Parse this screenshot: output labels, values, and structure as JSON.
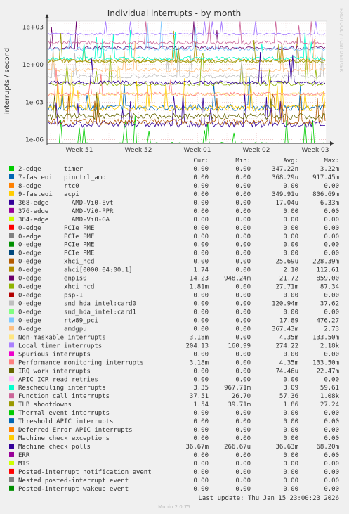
{
  "chart_data": {
    "type": "line",
    "title": "Individual interrupts - by month",
    "ylabel": "interrupts / second",
    "side_label": "RRDTOOL / TOBI OETIKER",
    "y_scale": "log",
    "ylim": [
      5e-07,
      3000
    ],
    "y_ticks": [
      "1e-06",
      "1e-03",
      "1e+00",
      "1e+03"
    ],
    "x_ticks": [
      "Week 51",
      "Week 52",
      "Week 01",
      "Week 02",
      "Week 03"
    ],
    "grid": true,
    "columns": [
      "Cur:",
      "Min:",
      "Avg:",
      "Max:"
    ],
    "series": [
      {
        "name": "2-edge      timer",
        "color": "#00cc00",
        "cur": "0.00",
        "min": "0.00",
        "avg": "347.22n",
        "max": "3.22m"
      },
      {
        "name": "7-fasteoi   pinctrl_amd",
        "color": "#0066b3",
        "cur": "0.00",
        "min": "0.00",
        "avg": "368.29u",
        "max": "917.45m"
      },
      {
        "name": "8-edge      rtc0",
        "color": "#ff8000",
        "cur": "0.00",
        "min": "0.00",
        "avg": "0.00",
        "max": "0.00"
      },
      {
        "name": "9-fasteoi   acpi",
        "color": "#ffcc00",
        "cur": "0.00",
        "min": "0.00",
        "avg": "349.91u",
        "max": "806.69m"
      },
      {
        "name": "368-edge      AMD-Vi0-Evt",
        "color": "#330099",
        "cur": "0.00",
        "min": "0.00",
        "avg": "17.04u",
        "max": "6.33m"
      },
      {
        "name": "376-edge      AMD-Vi0-PPR",
        "color": "#990099",
        "cur": "0.00",
        "min": "0.00",
        "avg": "0.00",
        "max": "0.00"
      },
      {
        "name": "384-edge      AMD-Vi0-GA",
        "color": "#ccff00",
        "cur": "0.00",
        "min": "0.00",
        "avg": "0.00",
        "max": "0.00"
      },
      {
        "name": "0-edge      PCIe PME",
        "color": "#ff0000",
        "cur": "0.00",
        "min": "0.00",
        "avg": "0.00",
        "max": "0.00"
      },
      {
        "name": "0-edge      PCIe PME",
        "color": "#808080",
        "cur": "0.00",
        "min": "0.00",
        "avg": "0.00",
        "max": "0.00"
      },
      {
        "name": "0-edge      PCIe PME",
        "color": "#008f00",
        "cur": "0.00",
        "min": "0.00",
        "avg": "0.00",
        "max": "0.00"
      },
      {
        "name": "0-edge      PCIe PME",
        "color": "#00487d",
        "cur": "0.00",
        "min": "0.00",
        "avg": "0.00",
        "max": "0.00"
      },
      {
        "name": "0-edge      xhci_hcd",
        "color": "#b35a00",
        "cur": "0.00",
        "min": "0.00",
        "avg": "25.69u",
        "max": "228.39m"
      },
      {
        "name": "0-edge      ahci[0000:04:00.1]",
        "color": "#b38f00",
        "cur": "1.74",
        "min": "0.00",
        "avg": "2.10",
        "max": "112.61"
      },
      {
        "name": "0-edge      enp1s0",
        "color": "#6b006b",
        "cur": "14.23",
        "min": "948.24m",
        "avg": "21.72",
        "max": "859.00"
      },
      {
        "name": "0-edge      xhci_hcd",
        "color": "#8fb300",
        "cur": "1.81m",
        "min": "0.00",
        "avg": "27.71m",
        "max": "87.34"
      },
      {
        "name": "0-edge      psp-1",
        "color": "#b30000",
        "cur": "0.00",
        "min": "0.00",
        "avg": "0.00",
        "max": "0.00"
      },
      {
        "name": "0-edge      snd_hda_intel:card0",
        "color": "#bebebe",
        "cur": "0.00",
        "min": "0.00",
        "avg": "120.94m",
        "max": "37.62"
      },
      {
        "name": "0-edge      snd_hda_intel:card1",
        "color": "#80ff80",
        "cur": "0.00",
        "min": "0.00",
        "avg": "0.00",
        "max": "0.00"
      },
      {
        "name": "0-edge      rtw89_pci",
        "color": "#80c9ff",
        "cur": "0.00",
        "min": "0.00",
        "avg": "17.89",
        "max": "476.27"
      },
      {
        "name": "0-edge      amdgpu",
        "color": "#ffc080",
        "cur": "0.00",
        "min": "0.00",
        "avg": "367.43m",
        "max": "2.73"
      },
      {
        "name": "Non-maskable interrupts",
        "color": "#ffe680",
        "cur": "3.18m",
        "min": "0.00",
        "avg": "4.35m",
        "max": "133.50m"
      },
      {
        "name": "Local timer interrupts",
        "color": "#aa80ff",
        "cur": "204.13",
        "min": "160.99",
        "avg": "274.22",
        "max": "2.18k"
      },
      {
        "name": "Spurious interrupts",
        "color": "#ee00cc",
        "cur": "0.00",
        "min": "0.00",
        "avg": "0.00",
        "max": "0.00"
      },
      {
        "name": "Performance monitoring interrupts",
        "color": "#ff8080",
        "cur": "3.18m",
        "min": "0.00",
        "avg": "4.35m",
        "max": "133.50m"
      },
      {
        "name": "IRQ work interrupts",
        "color": "#666600",
        "cur": "0.00",
        "min": "0.00",
        "avg": "74.46u",
        "max": "22.47m"
      },
      {
        "name": "APIC ICR read retries",
        "color": "#ffbfff",
        "cur": "0.00",
        "min": "0.00",
        "avg": "0.00",
        "max": "0.00"
      },
      {
        "name": "Rescheduling interrupts",
        "color": "#00ffcc",
        "cur": "3.35",
        "min": "967.71m",
        "avg": "3.09",
        "max": "59.61"
      },
      {
        "name": "Function call interrupts",
        "color": "#cc6699",
        "cur": "37.51",
        "min": "26.70",
        "avg": "57.36",
        "max": "1.08k"
      },
      {
        "name": "TLB shootdowns",
        "color": "#999900",
        "cur": "1.54",
        "min": "39.71m",
        "avg": "1.86",
        "max": "27.24"
      },
      {
        "name": "Thermal event interrupts",
        "color": "#00cc00",
        "cur": "0.00",
        "min": "0.00",
        "avg": "0.00",
        "max": "0.00"
      },
      {
        "name": "Threshold APIC interrupts",
        "color": "#0066b3",
        "cur": "0.00",
        "min": "0.00",
        "avg": "0.00",
        "max": "0.00"
      },
      {
        "name": "Deferred Error APIC interrupts",
        "color": "#ff8000",
        "cur": "0.00",
        "min": "0.00",
        "avg": "0.00",
        "max": "0.00"
      },
      {
        "name": "Machine check exceptions",
        "color": "#ffcc00",
        "cur": "0.00",
        "min": "0.00",
        "avg": "0.00",
        "max": "0.00"
      },
      {
        "name": "Machine check polls",
        "color": "#330099",
        "cur": "36.67m",
        "min": "266.67u",
        "avg": "36.63m",
        "max": "68.20m"
      },
      {
        "name": "ERR",
        "color": "#990099",
        "cur": "0.00",
        "min": "0.00",
        "avg": "0.00",
        "max": "0.00"
      },
      {
        "name": "MIS",
        "color": "#ccff00",
        "cur": "0.00",
        "min": "0.00",
        "avg": "0.00",
        "max": "0.00"
      },
      {
        "name": "Posted-interrupt notification event",
        "color": "#ff0000",
        "cur": "0.00",
        "min": "0.00",
        "avg": "0.00",
        "max": "0.00"
      },
      {
        "name": "Nested posted-interrupt event",
        "color": "#808080",
        "cur": "0.00",
        "min": "0.00",
        "avg": "0.00",
        "max": "0.00"
      },
      {
        "name": "Posted-interrupt wakeup event",
        "color": "#008f00",
        "cur": "0.00",
        "min": "0.00",
        "avg": "0.00",
        "max": "0.00"
      }
    ],
    "last_update": "Last update: Thu Jan 15 23:00:23 2026",
    "footer": "Munin 2.0.75"
  }
}
